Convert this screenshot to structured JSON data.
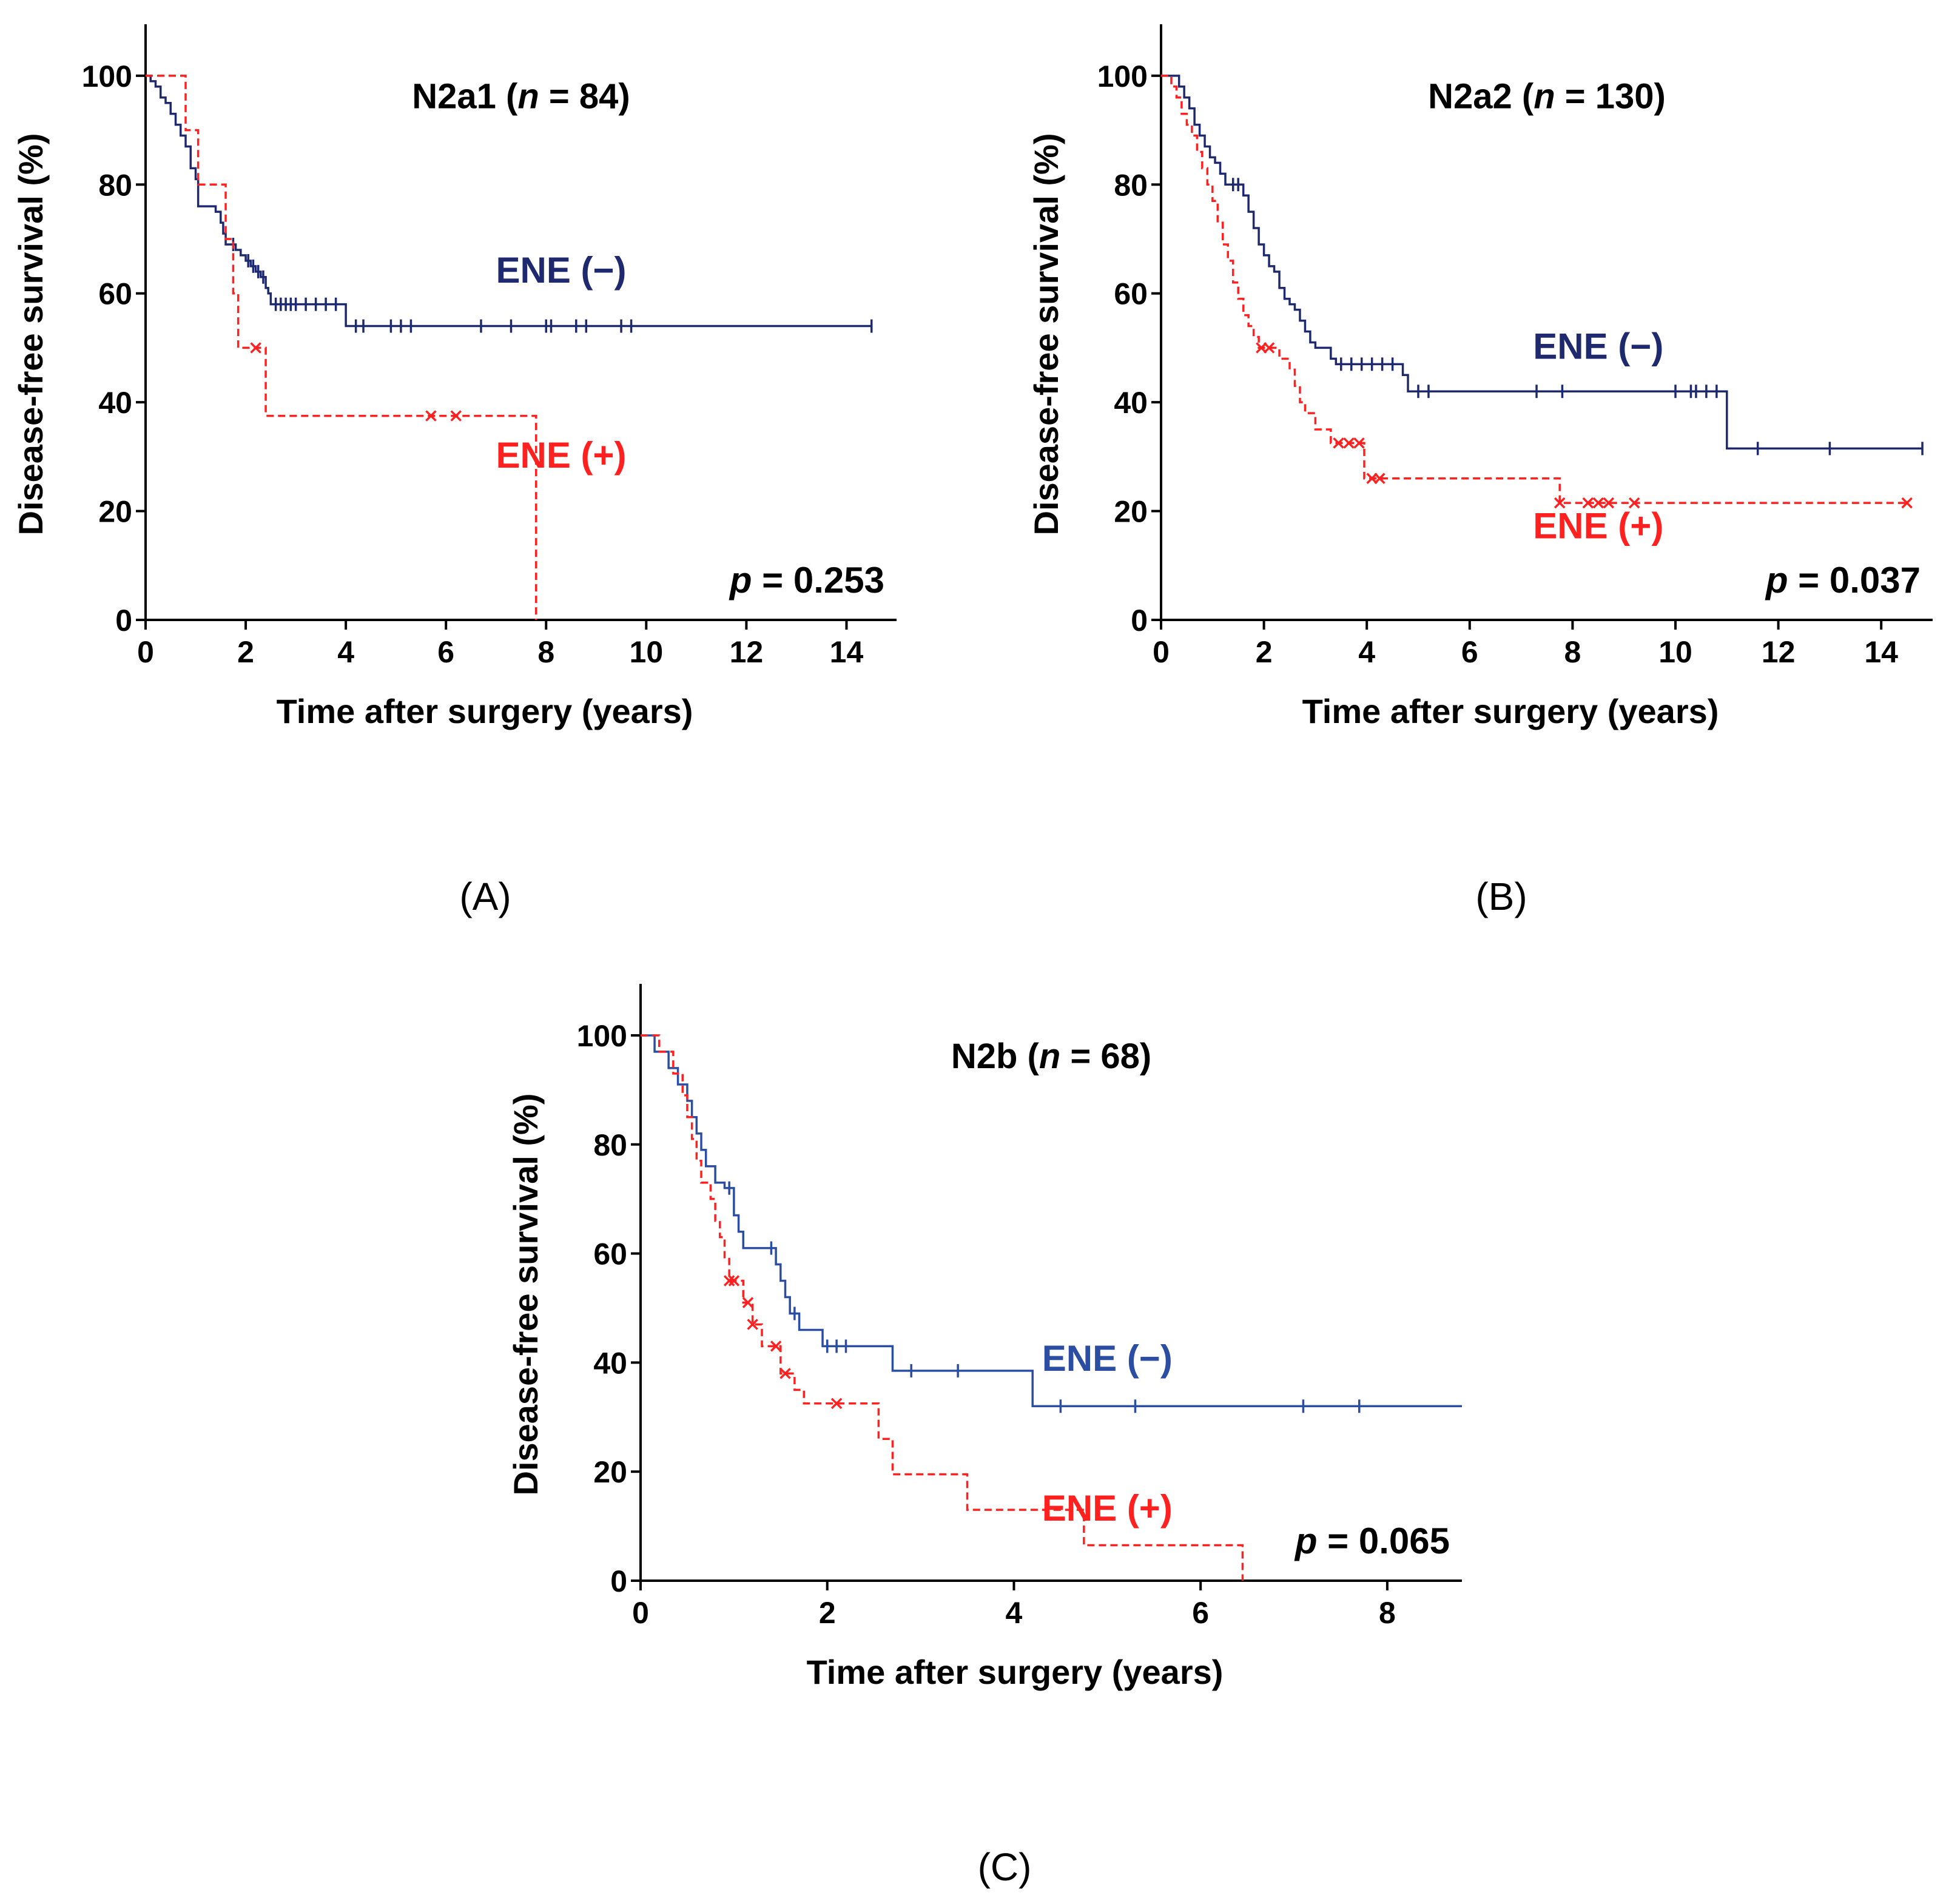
{
  "chart_data": [
    {
      "id": "A",
      "type": "line",
      "subtype": "kaplan-meier",
      "caption": "(A)",
      "title": {
        "prefix": "N2a1 (",
        "n_symbol": "n",
        "suffix": " = 84)"
      },
      "xlabel": "Time after surgery (years)",
      "ylabel": "Disease-free survival (%)",
      "xlim": [
        0,
        15
      ],
      "ylim": [
        0,
        105
      ],
      "xticks": [
        0,
        2,
        4,
        6,
        8,
        10,
        12,
        14
      ],
      "yticks": [
        0,
        20,
        40,
        60,
        80,
        100
      ],
      "pvalue": {
        "symbol": "p",
        "text": " = 0.253"
      },
      "series": [
        {
          "name": "ENE (−)",
          "color": "#1f2a6e",
          "dashed": false,
          "censor_marker": "tick",
          "label_pos": [
            8.3,
            62
          ],
          "steps": [
            [
              0,
              100
            ],
            [
              0.1,
              99
            ],
            [
              0.2,
              98
            ],
            [
              0.3,
              96
            ],
            [
              0.4,
              95
            ],
            [
              0.5,
              93
            ],
            [
              0.6,
              91
            ],
            [
              0.7,
              89
            ],
            [
              0.8,
              87
            ],
            [
              0.9,
              83
            ],
            [
              1.0,
              81
            ],
            [
              1.05,
              76
            ],
            [
              1.4,
              75
            ],
            [
              1.5,
              73
            ],
            [
              1.55,
              71
            ],
            [
              1.6,
              69
            ],
            [
              1.8,
              68
            ],
            [
              1.9,
              67
            ],
            [
              2.0,
              66
            ],
            [
              2.1,
              65
            ],
            [
              2.2,
              64
            ],
            [
              2.3,
              63
            ],
            [
              2.4,
              61
            ],
            [
              2.45,
              60
            ],
            [
              2.5,
              58
            ],
            [
              4.0,
              54
            ]
          ],
          "end": 14.5,
          "censors": [
            1.75,
            2.05,
            2.15,
            2.25,
            2.35,
            2.6,
            2.7,
            2.8,
            2.9,
            3.0,
            3.2,
            3.4,
            3.6,
            3.8,
            4.2,
            4.35,
            4.9,
            5.1,
            5.3,
            6.7,
            7.3,
            8.0,
            8.1,
            8.6,
            8.8,
            9.5,
            9.7,
            14.5
          ]
        },
        {
          "name": "ENE (+)",
          "color": "#ff2020",
          "dashed": true,
          "censor_marker": "x",
          "label_pos": [
            8.3,
            28
          ],
          "steps": [
            [
              0,
              100
            ],
            [
              0.8,
              90
            ],
            [
              1.05,
              80
            ],
            [
              1.6,
              70
            ],
            [
              1.75,
              60
            ],
            [
              1.85,
              50
            ],
            [
              2.4,
              37.5
            ],
            [
              7.8,
              0
            ]
          ],
          "end": 7.8,
          "censors": [
            2.2,
            5.7,
            6.2
          ]
        }
      ]
    },
    {
      "id": "B",
      "type": "line",
      "subtype": "kaplan-meier",
      "caption": "(B)",
      "title": {
        "prefix": "N2a2 (",
        "n_symbol": "n",
        "suffix": " = 130)"
      },
      "xlabel": "Time after surgery (years)",
      "ylabel": "Disease-free survival (%)",
      "xlim": [
        0,
        15
      ],
      "ylim": [
        0,
        105
      ],
      "xticks": [
        0,
        2,
        4,
        6,
        8,
        10,
        12,
        14
      ],
      "yticks": [
        0,
        20,
        40,
        60,
        80,
        100
      ],
      "pvalue": {
        "symbol": "p",
        "text": " = 0.037"
      },
      "series": [
        {
          "name": "ENE (−)",
          "color": "#1f2a6e",
          "dashed": false,
          "censor_marker": "tick",
          "label_pos": [
            8.5,
            48
          ],
          "steps": [
            [
              0,
              100
            ],
            [
              0.35,
              98
            ],
            [
              0.45,
              96
            ],
            [
              0.55,
              94
            ],
            [
              0.65,
              91
            ],
            [
              0.75,
              89
            ],
            [
              0.85,
              87
            ],
            [
              0.95,
              85
            ],
            [
              1.05,
              84
            ],
            [
              1.15,
              82
            ],
            [
              1.25,
              80
            ],
            [
              1.6,
              78
            ],
            [
              1.7,
              75
            ],
            [
              1.8,
              72
            ],
            [
              1.9,
              69
            ],
            [
              2.0,
              67
            ],
            [
              2.1,
              65
            ],
            [
              2.2,
              64
            ],
            [
              2.3,
              61
            ],
            [
              2.4,
              59
            ],
            [
              2.5,
              58
            ],
            [
              2.6,
              57
            ],
            [
              2.7,
              55
            ],
            [
              2.8,
              53
            ],
            [
              2.9,
              51
            ],
            [
              3.0,
              50
            ],
            [
              3.3,
              48
            ],
            [
              3.4,
              47
            ],
            [
              4.7,
              45
            ],
            [
              4.8,
              42
            ],
            [
              11.0,
              31.5
            ]
          ],
          "end": 14.8,
          "censors": [
            1.4,
            1.5,
            3.5,
            3.7,
            3.9,
            4.1,
            4.3,
            4.5,
            5.0,
            5.2,
            7.3,
            7.8,
            10.0,
            10.3,
            10.4,
            10.6,
            10.8,
            11.6,
            13.0,
            14.8
          ]
        },
        {
          "name": "ENE (+)",
          "color": "#ff2020",
          "dashed": true,
          "censor_marker": "x",
          "label_pos": [
            8.5,
            15
          ],
          "steps": [
            [
              0,
              100
            ],
            [
              0.2,
              98
            ],
            [
              0.3,
              96
            ],
            [
              0.4,
              93
            ],
            [
              0.5,
              91
            ],
            [
              0.6,
              89
            ],
            [
              0.7,
              86
            ],
            [
              0.8,
              83
            ],
            [
              0.9,
              80
            ],
            [
              1.0,
              77
            ],
            [
              1.1,
              73
            ],
            [
              1.2,
              69
            ],
            [
              1.3,
              66
            ],
            [
              1.4,
              62
            ],
            [
              1.5,
              59
            ],
            [
              1.6,
              56
            ],
            [
              1.7,
              54
            ],
            [
              1.8,
              52
            ],
            [
              1.9,
              50
            ],
            [
              2.3,
              48
            ],
            [
              2.5,
              46
            ],
            [
              2.6,
              43
            ],
            [
              2.7,
              40
            ],
            [
              2.8,
              38
            ],
            [
              3.0,
              35
            ],
            [
              3.3,
              32.5
            ],
            [
              3.95,
              26
            ],
            [
              7.75,
              21.5
            ]
          ],
          "end": 14.5,
          "censors": [
            1.95,
            2.1,
            3.45,
            3.65,
            3.85,
            4.1,
            4.25,
            7.75,
            8.3,
            8.5,
            8.7,
            9.2,
            14.5
          ]
        }
      ]
    },
    {
      "id": "C",
      "type": "line",
      "subtype": "kaplan-meier",
      "caption": "(C)",
      "title": {
        "prefix": "N2b (",
        "n_symbol": "n",
        "suffix": " = 68)"
      },
      "xlabel": "Time after surgery (years)",
      "ylabel": "Disease-free survival (%)",
      "xlim": [
        0,
        8.8
      ],
      "ylim": [
        0,
        105
      ],
      "xticks": [
        0,
        2,
        4,
        6,
        8
      ],
      "yticks": [
        0,
        20,
        40,
        60,
        80,
        100
      ],
      "pvalue": {
        "symbol": "p",
        "text": " = 0.065"
      },
      "series": [
        {
          "name": "ENE (−)",
          "color": "#2b4ea3",
          "dashed": false,
          "censor_marker": "tick",
          "label_pos": [
            5.0,
            38.5
          ],
          "steps": [
            [
              0,
              100
            ],
            [
              0.15,
              97
            ],
            [
              0.3,
              94
            ],
            [
              0.4,
              91
            ],
            [
              0.5,
              88
            ],
            [
              0.55,
              85
            ],
            [
              0.6,
              82
            ],
            [
              0.65,
              79
            ],
            [
              0.7,
              76
            ],
            [
              0.8,
              73
            ],
            [
              0.9,
              72
            ],
            [
              1.0,
              67
            ],
            [
              1.05,
              64
            ],
            [
              1.1,
              61
            ],
            [
              1.45,
              58
            ],
            [
              1.5,
              55
            ],
            [
              1.55,
              52
            ],
            [
              1.6,
              49
            ],
            [
              1.7,
              46
            ],
            [
              1.95,
              43
            ],
            [
              2.7,
              38.5
            ],
            [
              4.2,
              32
            ]
          ],
          "end": 8.8,
          "censors": [
            0.95,
            1.4,
            1.65,
            2.0,
            2.1,
            2.2,
            2.9,
            3.4,
            4.5,
            5.3,
            7.1,
            7.7
          ]
        },
        {
          "name": "ENE (+)",
          "color": "#ff2020",
          "dashed": true,
          "censor_marker": "x",
          "label_pos": [
            5.0,
            11
          ],
          "steps": [
            [
              0,
              100
            ],
            [
              0.2,
              97
            ],
            [
              0.35,
              93
            ],
            [
              0.45,
              89
            ],
            [
              0.5,
              85
            ],
            [
              0.55,
              81
            ],
            [
              0.6,
              77
            ],
            [
              0.65,
              73
            ],
            [
              0.75,
              70
            ],
            [
              0.8,
              66
            ],
            [
              0.85,
              63
            ],
            [
              0.9,
              59
            ],
            [
              0.95,
              55
            ],
            [
              1.1,
              51
            ],
            [
              1.2,
              47
            ],
            [
              1.3,
              43
            ],
            [
              1.5,
              38
            ],
            [
              1.65,
              35
            ],
            [
              1.75,
              32.5
            ],
            [
              2.55,
              26
            ],
            [
              2.7,
              19.5
            ],
            [
              3.5,
              13
            ],
            [
              4.75,
              6.5
            ],
            [
              6.45,
              0
            ]
          ],
          "end": 6.45,
          "censors": [
            0.95,
            1.0,
            1.15,
            1.2,
            1.45,
            1.55,
            2.1
          ]
        }
      ]
    }
  ]
}
